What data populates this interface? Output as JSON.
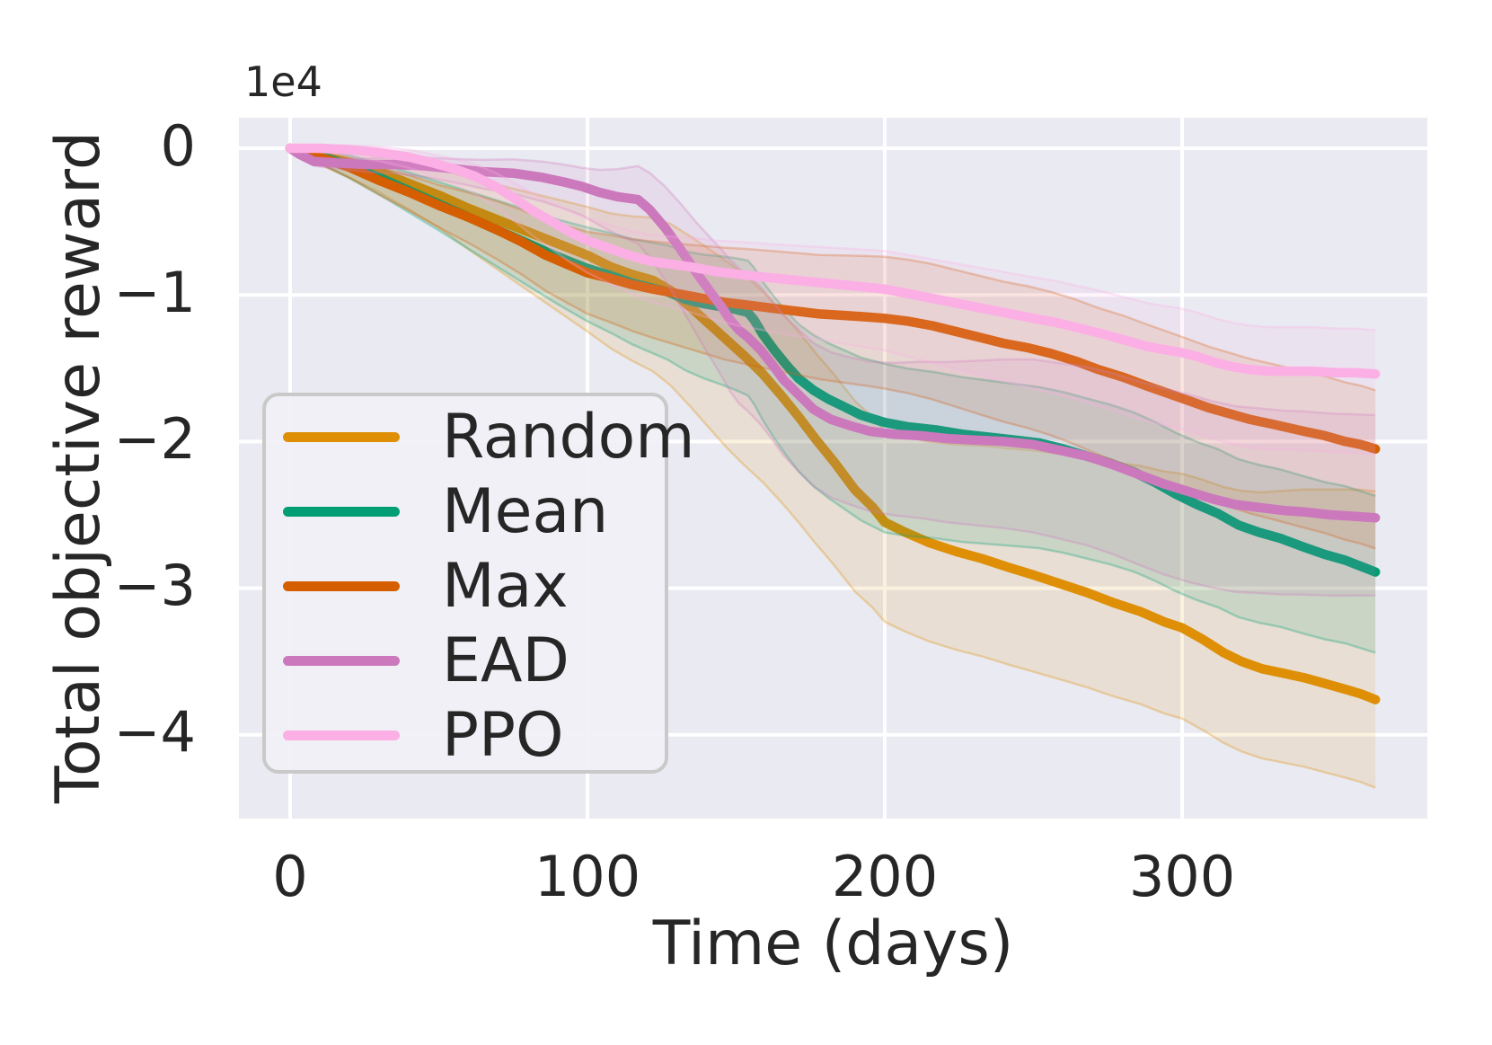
{
  "figure": {
    "background": "#ffffff",
    "plot_background": "#EAEAF2",
    "grid_color": "#ffffff",
    "text_color": "#262626"
  },
  "axes": {
    "x": {
      "label": "Time (days)",
      "ticks": [
        {
          "value": 0,
          "label": "0"
        },
        {
          "value": 100,
          "label": "100"
        },
        {
          "value": 200,
          "label": "200"
        },
        {
          "value": 300,
          "label": "300"
        }
      ]
    },
    "y": {
      "label": "Total objective reward",
      "offset_text": "1e4",
      "ticks": [
        {
          "value": 0,
          "label": "0"
        },
        {
          "value": -1,
          "label": "−1"
        },
        {
          "value": -2,
          "label": "−2"
        },
        {
          "value": -3,
          "label": "−3"
        },
        {
          "value": -4,
          "label": "−4"
        }
      ]
    }
  },
  "legend": {
    "position": "center-left",
    "entries": [
      {
        "label": "Random",
        "color": "#DE8F05"
      },
      {
        "label": "Mean",
        "color": "#029E73"
      },
      {
        "label": "Max",
        "color": "#D55E00"
      },
      {
        "label": "EAD",
        "color": "#CC78BC"
      },
      {
        "label": "PPO",
        "color": "#FBAFE4"
      }
    ]
  },
  "chart_data": {
    "type": "line",
    "title": "",
    "xlabel": "Time (days)",
    "ylabel": "Total objective reward",
    "grid": true,
    "legend_position": "center-left",
    "x_range_days": [
      -17,
      383
    ],
    "y_range": [
      -45600,
      2100
    ],
    "y_value_multiplier": 10000,
    "note": "point values are in units of 1e4 total objective reward; bands are confidence intervals (offsets in same units, interpolated at band_days)",
    "band_days": [
      0,
      50,
      100,
      150,
      200,
      250,
      300,
      365
    ],
    "series": [
      {
        "name": "Random",
        "color": "#DE8F05",
        "points": [
          [
            0,
            0
          ],
          [
            5,
            -0.02
          ],
          [
            10,
            -0.05
          ],
          [
            20,
            -0.1
          ],
          [
            30,
            -0.16
          ],
          [
            40,
            -0.24
          ],
          [
            50,
            -0.32
          ],
          [
            60,
            -0.41
          ],
          [
            70,
            -0.49
          ],
          [
            80,
            -0.57
          ],
          [
            90,
            -0.65
          ],
          [
            100,
            -0.73
          ],
          [
            108,
            -0.81
          ],
          [
            115,
            -0.86
          ],
          [
            122,
            -0.9
          ],
          [
            128,
            -0.97
          ],
          [
            135,
            -1.09
          ],
          [
            141,
            -1.2
          ],
          [
            147,
            -1.31
          ],
          [
            153,
            -1.42
          ],
          [
            159,
            -1.54
          ],
          [
            165,
            -1.68
          ],
          [
            171,
            -1.83
          ],
          [
            177,
            -1.99
          ],
          [
            183,
            -2.14
          ],
          [
            190,
            -2.33
          ],
          [
            196,
            -2.45
          ],
          [
            200,
            -2.55
          ],
          [
            207,
            -2.62
          ],
          [
            215,
            -2.69
          ],
          [
            224,
            -2.75
          ],
          [
            233,
            -2.8
          ],
          [
            242,
            -2.86
          ],
          [
            250,
            -2.91
          ],
          [
            259,
            -2.97
          ],
          [
            268,
            -3.03
          ],
          [
            277,
            -3.1
          ],
          [
            286,
            -3.16
          ],
          [
            294,
            -3.23
          ],
          [
            300,
            -3.27
          ],
          [
            307,
            -3.35
          ],
          [
            314,
            -3.44
          ],
          [
            320,
            -3.5
          ],
          [
            327,
            -3.55
          ],
          [
            334,
            -3.58
          ],
          [
            341,
            -3.61
          ],
          [
            348,
            -3.65
          ],
          [
            355,
            -3.69
          ],
          [
            360,
            -3.72
          ],
          [
            365,
            -3.76
          ]
        ],
        "band_upper": [
          0.02,
          0.18,
          0.33,
          0.55,
          0.62,
          0.85,
          1.05,
          1.42
        ],
        "band_lower": [
          0.02,
          0.22,
          0.52,
          0.75,
          0.68,
          0.66,
          0.62,
          0.6
        ]
      },
      {
        "name": "Mean",
        "color": "#029E73",
        "points": [
          [
            0,
            0
          ],
          [
            5,
            -0.02
          ],
          [
            10,
            -0.05
          ],
          [
            20,
            -0.12
          ],
          [
            30,
            -0.2
          ],
          [
            40,
            -0.29
          ],
          [
            50,
            -0.38
          ],
          [
            60,
            -0.47
          ],
          [
            70,
            -0.56
          ],
          [
            80,
            -0.65
          ],
          [
            90,
            -0.74
          ],
          [
            100,
            -0.82
          ],
          [
            108,
            -0.87
          ],
          [
            115,
            -0.92
          ],
          [
            121,
            -0.95
          ],
          [
            127,
            -0.98
          ],
          [
            133,
            -1.03
          ],
          [
            139,
            -1.06
          ],
          [
            145,
            -1.08
          ],
          [
            150,
            -1.1
          ],
          [
            154,
            -1.12
          ],
          [
            156,
            -1.17
          ],
          [
            159,
            -1.27
          ],
          [
            163,
            -1.38
          ],
          [
            167,
            -1.48
          ],
          [
            171,
            -1.57
          ],
          [
            176,
            -1.65
          ],
          [
            181,
            -1.71
          ],
          [
            186,
            -1.76
          ],
          [
            192,
            -1.82
          ],
          [
            200,
            -1.87
          ],
          [
            208,
            -1.9
          ],
          [
            217,
            -1.92
          ],
          [
            226,
            -1.95
          ],
          [
            235,
            -1.97
          ],
          [
            244,
            -1.99
          ],
          [
            252,
            -2.01
          ],
          [
            260,
            -2.05
          ],
          [
            268,
            -2.1
          ],
          [
            276,
            -2.15
          ],
          [
            284,
            -2.21
          ],
          [
            291,
            -2.28
          ],
          [
            298,
            -2.36
          ],
          [
            305,
            -2.43
          ],
          [
            312,
            -2.49
          ],
          [
            319,
            -2.57
          ],
          [
            326,
            -2.62
          ],
          [
            333,
            -2.66
          ],
          [
            341,
            -2.72
          ],
          [
            348,
            -2.77
          ],
          [
            355,
            -2.81
          ],
          [
            360,
            -2.85
          ],
          [
            365,
            -2.89
          ]
        ],
        "band_upper": [
          0.02,
          0.15,
          0.28,
          0.35,
          0.4,
          0.38,
          0.42,
          0.52
        ],
        "band_lower": [
          0.02,
          0.18,
          0.36,
          0.55,
          0.75,
          0.72,
          0.66,
          0.55
        ]
      },
      {
        "name": "Max",
        "color": "#D55E00",
        "points": [
          [
            0,
            0
          ],
          [
            5,
            -0.03
          ],
          [
            10,
            -0.06
          ],
          [
            20,
            -0.13
          ],
          [
            30,
            -0.22
          ],
          [
            40,
            -0.3
          ],
          [
            50,
            -0.39
          ],
          [
            60,
            -0.47
          ],
          [
            70,
            -0.56
          ],
          [
            78,
            -0.64
          ],
          [
            86,
            -0.73
          ],
          [
            93,
            -0.79
          ],
          [
            100,
            -0.85
          ],
          [
            108,
            -0.89
          ],
          [
            115,
            -0.93
          ],
          [
            122,
            -0.96
          ],
          [
            130,
            -0.99
          ],
          [
            138,
            -1.02
          ],
          [
            146,
            -1.05
          ],
          [
            154,
            -1.07
          ],
          [
            162,
            -1.09
          ],
          [
            170,
            -1.11
          ],
          [
            178,
            -1.13
          ],
          [
            186,
            -1.14
          ],
          [
            194,
            -1.15
          ],
          [
            200,
            -1.16
          ],
          [
            208,
            -1.18
          ],
          [
            216,
            -1.21
          ],
          [
            224,
            -1.25
          ],
          [
            232,
            -1.29
          ],
          [
            240,
            -1.33
          ],
          [
            248,
            -1.36
          ],
          [
            256,
            -1.4
          ],
          [
            264,
            -1.45
          ],
          [
            272,
            -1.51
          ],
          [
            280,
            -1.56
          ],
          [
            288,
            -1.62
          ],
          [
            295,
            -1.67
          ],
          [
            302,
            -1.72
          ],
          [
            309,
            -1.77
          ],
          [
            316,
            -1.81
          ],
          [
            323,
            -1.85
          ],
          [
            330,
            -1.88
          ],
          [
            341,
            -1.93
          ],
          [
            348,
            -1.96
          ],
          [
            355,
            -2.0
          ],
          [
            360,
            -2.02
          ],
          [
            365,
            -2.05
          ]
        ],
        "band_upper": [
          0.02,
          0.14,
          0.28,
          0.38,
          0.42,
          0.42,
          0.42,
          0.4
        ],
        "band_lower": [
          0.02,
          0.15,
          0.28,
          0.4,
          0.48,
          0.55,
          0.62,
          0.68
        ]
      },
      {
        "name": "EAD",
        "color": "#CC78BC",
        "points": [
          [
            0,
            0
          ],
          [
            3,
            -0.04
          ],
          [
            8,
            -0.09
          ],
          [
            15,
            -0.1
          ],
          [
            25,
            -0.11
          ],
          [
            35,
            -0.11
          ],
          [
            45,
            -0.12
          ],
          [
            55,
            -0.14
          ],
          [
            65,
            -0.16
          ],
          [
            75,
            -0.17
          ],
          [
            85,
            -0.2
          ],
          [
            92,
            -0.23
          ],
          [
            98,
            -0.26
          ],
          [
            104,
            -0.3
          ],
          [
            110,
            -0.33
          ],
          [
            117,
            -0.35
          ],
          [
            121,
            -0.42
          ],
          [
            126,
            -0.54
          ],
          [
            131,
            -0.68
          ],
          [
            136,
            -0.83
          ],
          [
            141,
            -0.97
          ],
          [
            145,
            -1.08
          ],
          [
            148,
            -1.17
          ],
          [
            151,
            -1.24
          ],
          [
            154,
            -1.29
          ],
          [
            158,
            -1.37
          ],
          [
            162,
            -1.47
          ],
          [
            166,
            -1.58
          ],
          [
            171,
            -1.68
          ],
          [
            176,
            -1.78
          ],
          [
            182,
            -1.85
          ],
          [
            188,
            -1.89
          ],
          [
            195,
            -1.93
          ],
          [
            203,
            -1.95
          ],
          [
            212,
            -1.96
          ],
          [
            221,
            -1.98
          ],
          [
            230,
            -1.99
          ],
          [
            240,
            -2.0
          ],
          [
            250,
            -2.02
          ],
          [
            259,
            -2.06
          ],
          [
            268,
            -2.1
          ],
          [
            277,
            -2.16
          ],
          [
            286,
            -2.23
          ],
          [
            294,
            -2.29
          ],
          [
            302,
            -2.34
          ],
          [
            310,
            -2.39
          ],
          [
            318,
            -2.43
          ],
          [
            326,
            -2.45
          ],
          [
            334,
            -2.47
          ],
          [
            341,
            -2.48
          ],
          [
            350,
            -2.5
          ],
          [
            358,
            -2.51
          ],
          [
            365,
            -2.52
          ]
        ],
        "band_upper": [
          0.02,
          0.06,
          0.13,
          0.42,
          0.48,
          0.58,
          0.66,
          0.7
        ],
        "band_lower": [
          0.02,
          0.08,
          0.2,
          0.5,
          0.55,
          0.6,
          0.62,
          0.53
        ]
      },
      {
        "name": "PPO",
        "color": "#FBAFE4",
        "points": [
          [
            0,
            0
          ],
          [
            10,
            0
          ],
          [
            20,
            -0.01
          ],
          [
            30,
            -0.03
          ],
          [
            40,
            -0.06
          ],
          [
            48,
            -0.1
          ],
          [
            55,
            -0.14
          ],
          [
            62,
            -0.19
          ],
          [
            69,
            -0.26
          ],
          [
            76,
            -0.35
          ],
          [
            82,
            -0.43
          ],
          [
            88,
            -0.5
          ],
          [
            94,
            -0.57
          ],
          [
            100,
            -0.63
          ],
          [
            107,
            -0.68
          ],
          [
            114,
            -0.73
          ],
          [
            121,
            -0.77
          ],
          [
            128,
            -0.79
          ],
          [
            135,
            -0.81
          ],
          [
            143,
            -0.84
          ],
          [
            151,
            -0.86
          ],
          [
            160,
            -0.88
          ],
          [
            170,
            -0.9
          ],
          [
            180,
            -0.92
          ],
          [
            190,
            -0.94
          ],
          [
            200,
            -0.96
          ],
          [
            210,
            -1.0
          ],
          [
            220,
            -1.04
          ],
          [
            230,
            -1.08
          ],
          [
            240,
            -1.12
          ],
          [
            250,
            -1.16
          ],
          [
            258,
            -1.19
          ],
          [
            266,
            -1.23
          ],
          [
            274,
            -1.27
          ],
          [
            281,
            -1.31
          ],
          [
            288,
            -1.35
          ],
          [
            293,
            -1.37
          ],
          [
            299,
            -1.39
          ],
          [
            305,
            -1.42
          ],
          [
            311,
            -1.46
          ],
          [
            317,
            -1.49
          ],
          [
            323,
            -1.51
          ],
          [
            329,
            -1.52
          ],
          [
            336,
            -1.52
          ],
          [
            344,
            -1.52
          ],
          [
            352,
            -1.53
          ],
          [
            358,
            -1.53
          ],
          [
            365,
            -1.54
          ]
        ],
        "band_upper": [
          0.01,
          0.06,
          0.15,
          0.22,
          0.26,
          0.28,
          0.3,
          0.3
        ],
        "band_lower": [
          0.01,
          0.09,
          0.22,
          0.35,
          0.42,
          0.48,
          0.52,
          0.55
        ]
      }
    ]
  }
}
